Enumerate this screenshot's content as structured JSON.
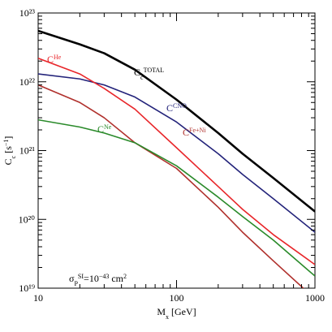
{
  "chart_data": {
    "type": "line",
    "log_x": true,
    "log_y": true,
    "x": [
      10,
      20,
      30,
      50,
      100,
      200,
      300,
      500,
      1000
    ],
    "xlim": [
      10,
      1000
    ],
    "xticks": [
      10,
      100,
      1000
    ],
    "ylim": [
      1e+19,
      1e+23
    ],
    "yticks": [
      {
        "value": 1e+19,
        "label": "10¹⁹"
      },
      {
        "value": 1e+20,
        "label": "10²⁰"
      },
      {
        "value": 1e+21,
        "label": "10²¹"
      },
      {
        "value": 1e+22,
        "label": "10²²"
      },
      {
        "value": 1e+23,
        "label": "10²³"
      }
    ],
    "xlabel": [
      {
        "text": "M"
      },
      {
        "text": "x",
        "shift": "sub"
      },
      {
        "text": " [GeV]"
      }
    ],
    "ylabel": [
      {
        "text": "C"
      },
      {
        "text": "c",
        "shift": "sub"
      },
      {
        "text": " [s"
      },
      {
        "text": "−1",
        "shift": "super"
      },
      {
        "text": "]"
      }
    ],
    "annotation": [
      {
        "text": "σ"
      },
      {
        "text": "P",
        "shift": "sub"
      },
      {
        "text": "SI",
        "shift": "super"
      },
      {
        "text": "=10"
      },
      {
        "text": "−43",
        "shift": "super"
      },
      {
        "text": "  cm"
      },
      {
        "text": "2",
        "shift": "super"
      }
    ],
    "series": [
      {
        "name": [
          {
            "text": "C"
          },
          {
            "text": "c",
            "shift": "sub"
          },
          {
            "text": "TOTAL",
            "shift": "super"
          }
        ],
        "color": "#000000",
        "width": 2.6,
        "values": [
          5.5e+22,
          3.5e+22,
          2.6e+22,
          1.5e+22,
          5.5e+21,
          1.8e+21,
          9e+20,
          4e+20,
          1.3e+20
        ]
      },
      {
        "name": [
          {
            "text": "C"
          },
          {
            "text": "CNO",
            "shift": "super"
          }
        ],
        "color": "#23237a",
        "width": 1.6,
        "values": [
          1.3e+22,
          1.1e+22,
          9e+21,
          6e+21,
          2.6e+21,
          9e+20,
          4.5e+20,
          2e+20,
          6.5e+19
        ]
      },
      {
        "name": [
          {
            "text": "C"
          },
          {
            "text": "He",
            "shift": "super"
          }
        ],
        "color": "#e8262a",
        "width": 1.6,
        "values": [
          2.2e+22,
          1.3e+22,
          8e+21,
          4e+21,
          1.1e+21,
          3e+20,
          1.4e+20,
          6e+19,
          2.2e+19
        ]
      },
      {
        "name": [
          {
            "text": "C"
          },
          {
            "text": "Fe+Ni",
            "shift": "super"
          }
        ],
        "color": "#b0302c",
        "width": 1.6,
        "values": [
          9e+21,
          5e+21,
          3e+21,
          1.3e+21,
          5.5e+20,
          1.5e+20,
          6.5e+19,
          2.5e+19,
          7e+18
        ]
      },
      {
        "name": [
          {
            "text": "C"
          },
          {
            "text": "Ne",
            "shift": "super"
          }
        ],
        "color": "#2a8a2a",
        "width": 1.6,
        "values": [
          2.8e+21,
          2.2e+21,
          1.8e+21,
          1.3e+21,
          6e+20,
          2.1e+20,
          1.1e+20,
          5e+19,
          1.5e+19
        ]
      }
    ]
  }
}
